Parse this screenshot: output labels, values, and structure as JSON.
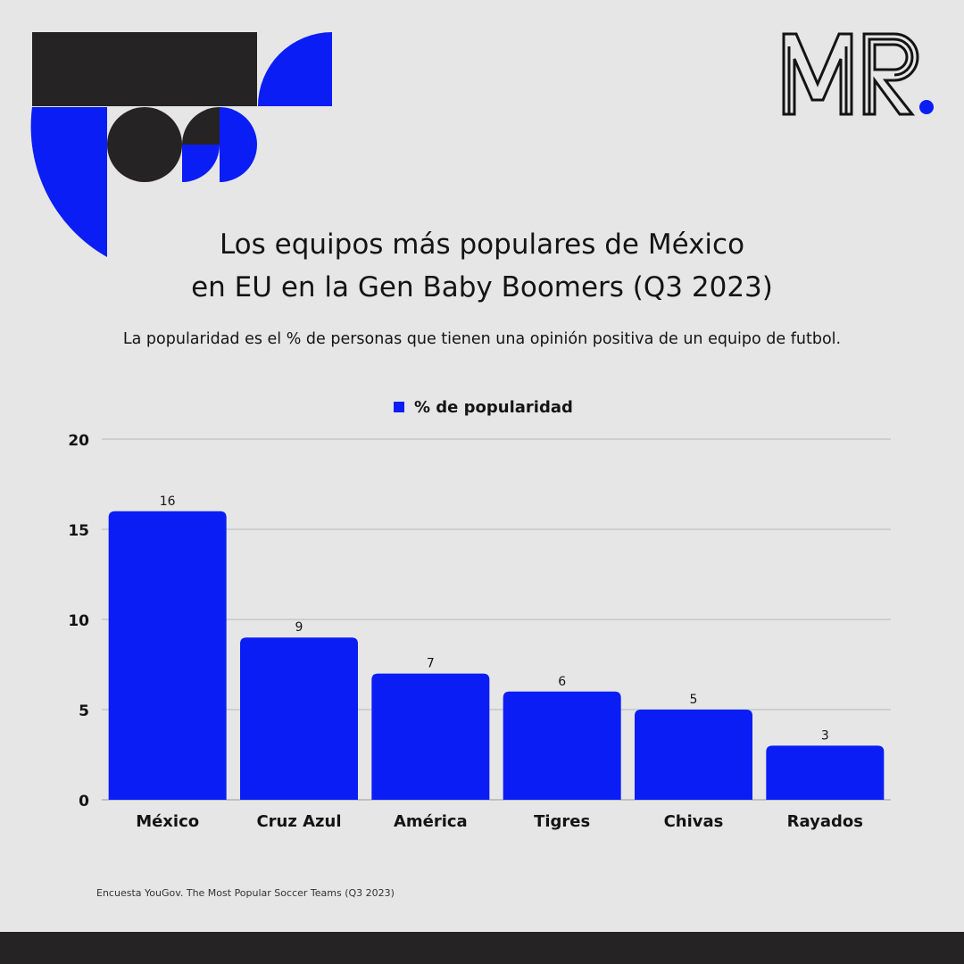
{
  "brand": {
    "logo_text": "MR",
    "accent": "#0b1df5",
    "dark": "#262324"
  },
  "title_line1": "Los equipos más populares de México",
  "title_line2": "en EU en la Gen Baby Boomers (Q3 2023)",
  "subtitle": "La popularidad es el % de personas que tienen una opinión positiva de un equipo de futbol.",
  "source": "Encuesta YouGov. The Most Popular Soccer Teams (Q3 2023)",
  "chart_data": {
    "type": "bar",
    "categories": [
      "México",
      "Cruz Azul",
      "América",
      "Tigres",
      "Chivas",
      "Rayados"
    ],
    "series": [
      {
        "name": "% de popularidad",
        "values": [
          16,
          9,
          7,
          6,
          5,
          3
        ],
        "color": "#0b1df5"
      }
    ],
    "ylim": [
      0,
      20
    ],
    "yticks": [
      0,
      5,
      10,
      15,
      20
    ],
    "grid": true,
    "legend": "top-center",
    "data_labels": true
  }
}
